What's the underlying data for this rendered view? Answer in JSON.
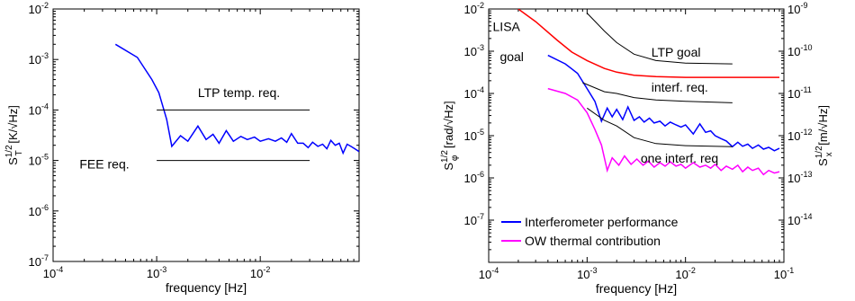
{
  "chart_data": [
    {
      "type": "line",
      "xscale": "log",
      "yscale": "log",
      "xlim": [
        0.0001,
        0.09
      ],
      "ylim": [
        1e-07,
        0.01
      ],
      "xticks": [
        {
          "value": 0.0001,
          "base": "10",
          "exp": "-4"
        },
        {
          "value": 0.001,
          "base": "10",
          "exp": "-3"
        },
        {
          "value": 0.01,
          "base": "10",
          "exp": "-2"
        }
      ],
      "yticks": [
        {
          "value": 1e-07,
          "base": "10",
          "exp": "-7"
        },
        {
          "value": 1e-06,
          "base": "10",
          "exp": "-6"
        },
        {
          "value": 1e-05,
          "base": "10",
          "exp": "-5"
        },
        {
          "value": 0.0001,
          "base": "10",
          "exp": "-4"
        },
        {
          "value": 0.001,
          "base": "10",
          "exp": "-3"
        },
        {
          "value": 0.01,
          "base": "10",
          "exp": "-2"
        }
      ],
      "xlabel": "frequency [Hz]",
      "ylabel": {
        "main": "S",
        "sub": "T",
        "sup": "1/2",
        "units": " [K/√Hz]"
      },
      "series": [
        {
          "color": "#0000ff",
          "points": [
            [
              0.0004,
              0.002
            ],
            [
              0.00065,
              0.0011
            ],
            [
              0.0009,
              0.0004
            ],
            [
              0.00105,
              0.00022
            ],
            [
              0.00125,
              6.5e-05
            ],
            [
              0.0014,
              1.9e-05
            ],
            [
              0.0017,
              3.1e-05
            ],
            [
              0.002,
              2.4e-05
            ],
            [
              0.0025,
              4.8e-05
            ],
            [
              0.003,
              2.6e-05
            ],
            [
              0.0035,
              3.3e-05
            ],
            [
              0.004,
              2.2e-05
            ],
            [
              0.0047,
              3.9e-05
            ],
            [
              0.0055,
              2.4e-05
            ],
            [
              0.0065,
              3e-05
            ],
            [
              0.0075,
              2.6e-05
            ],
            [
              0.0088,
              2.9e-05
            ],
            [
              0.01,
              2.4e-05
            ],
            [
              0.012,
              2.7e-05
            ],
            [
              0.014,
              2.4e-05
            ],
            [
              0.016,
              2.8e-05
            ],
            [
              0.018,
              2.3e-05
            ],
            [
              0.02,
              3.4e-05
            ],
            [
              0.023,
              2.2e-05
            ],
            [
              0.026,
              2.2e-05
            ],
            [
              0.029,
              1.8e-05
            ],
            [
              0.032,
              2.3e-05
            ],
            [
              0.036,
              1.9e-05
            ],
            [
              0.04,
              2.1e-05
            ],
            [
              0.044,
              1.7e-05
            ],
            [
              0.048,
              2.5e-05
            ],
            [
              0.053,
              2e-05
            ],
            [
              0.058,
              2.2e-05
            ],
            [
              0.063,
              1.4e-05
            ],
            [
              0.069,
              2.1e-05
            ],
            [
              0.075,
              1.9e-05
            ],
            [
              0.082,
              1.7e-05
            ],
            [
              0.09,
              1.5e-05
            ]
          ]
        },
        {
          "color": "#000000",
          "points": [
            [
              0.001,
              0.0001
            ],
            [
              0.03,
              0.0001
            ]
          ]
        },
        {
          "color": "#000000",
          "points": [
            [
              0.001,
              1e-05
            ],
            [
              0.03,
              1e-05
            ]
          ]
        }
      ],
      "annotations": [
        {
          "text": "LTP temp. req.",
          "x": 0.0025,
          "y": 0.00018
        },
        {
          "text": "FEE req.",
          "x": 0.00018,
          "y": 7e-06
        }
      ]
    },
    {
      "type": "line",
      "xscale": "log",
      "yscale": "log",
      "xlim": [
        0.0001,
        0.1
      ],
      "ylim": [
        1e-08,
        0.01
      ],
      "xticks": [
        {
          "value": 0.0001,
          "base": "10",
          "exp": "-4"
        },
        {
          "value": 0.001,
          "base": "10",
          "exp": "-3"
        },
        {
          "value": 0.01,
          "base": "10",
          "exp": "-2"
        },
        {
          "value": 0.1,
          "base": "10",
          "exp": "-1"
        }
      ],
      "yticks": [
        {
          "value": 1e-07,
          "base": "10",
          "exp": "-7"
        },
        {
          "value": 1e-06,
          "base": "10",
          "exp": "-6"
        },
        {
          "value": 1e-05,
          "base": "10",
          "exp": "-5"
        },
        {
          "value": 0.0001,
          "base": "10",
          "exp": "-4"
        },
        {
          "value": 0.001,
          "base": "10",
          "exp": "-3"
        },
        {
          "value": 0.01,
          "base": "10",
          "exp": "-2"
        }
      ],
      "yticks_right": [
        {
          "value": 1e-09,
          "base": "10",
          "exp": "-9"
        },
        {
          "value": 1e-10,
          "base": "10",
          "exp": "-10"
        },
        {
          "value": 1e-11,
          "base": "10",
          "exp": "-11"
        },
        {
          "value": 1e-12,
          "base": "10",
          "exp": "-12"
        },
        {
          "value": 1e-13,
          "base": "10",
          "exp": "-13"
        },
        {
          "value": 1e-14,
          "base": "10",
          "exp": "-14"
        }
      ],
      "ylim_right": [
        1e-15,
        1e-09
      ],
      "xlabel": "frequency [Hz]",
      "ylabel": {
        "main": "S",
        "sub": "φ",
        "sup": "1/2",
        "units": " [rad/√Hz]"
      },
      "ylabel_right": {
        "main": "S",
        "sub": "x",
        "sup": "1/2",
        "units": " [m/√Hz]"
      },
      "legend": {
        "placement": "bottom-left",
        "entries": [
          {
            "label": "Interferometer performance",
            "color": "#0000ff"
          },
          {
            "label": "OW thermal contribution",
            "color": "#ff00ff"
          }
        ]
      },
      "series": [
        {
          "name": "Interferometer performance",
          "color": "#0000ff",
          "points": [
            [
              0.0004,
              0.0008
            ],
            [
              0.0006,
              0.0005
            ],
            [
              0.0008,
              0.0003
            ],
            [
              0.001,
              0.00013
            ],
            [
              0.0012,
              6.5e-05
            ],
            [
              0.0014,
              2.2e-05
            ],
            [
              0.0016,
              4.5e-05
            ],
            [
              0.0018,
              2.8e-05
            ],
            [
              0.002,
              4.2e-05
            ],
            [
              0.0023,
              2.4e-05
            ],
            [
              0.0026,
              4.8e-05
            ],
            [
              0.003,
              2.3e-05
            ],
            [
              0.0034,
              2.8e-05
            ],
            [
              0.0038,
              2.1e-05
            ],
            [
              0.0043,
              2.6e-05
            ],
            [
              0.0048,
              2e-05
            ],
            [
              0.0055,
              2.2e-05
            ],
            [
              0.0062,
              1.7e-05
            ],
            [
              0.007,
              2.1e-05
            ],
            [
              0.008,
              1.8e-05
            ],
            [
              0.009,
              1.6e-05
            ],
            [
              0.01,
              1.8e-05
            ],
            [
              0.012,
              1.1e-05
            ],
            [
              0.014,
              1.9e-05
            ],
            [
              0.016,
              1.2e-05
            ],
            [
              0.018,
              1.3e-05
            ],
            [
              0.02,
              1e-05
            ],
            [
              0.023,
              8.5e-06
            ],
            [
              0.026,
              7.5e-06
            ],
            [
              0.03,
              5.5e-06
            ],
            [
              0.034,
              7e-06
            ],
            [
              0.038,
              5.6e-06
            ],
            [
              0.043,
              6.3e-06
            ],
            [
              0.048,
              5e-06
            ],
            [
              0.055,
              6e-06
            ],
            [
              0.062,
              4.8e-06
            ],
            [
              0.07,
              5.3e-06
            ],
            [
              0.08,
              4.4e-06
            ],
            [
              0.09,
              5e-06
            ]
          ]
        },
        {
          "name": "OW thermal contribution",
          "color": "#ff00ff",
          "points": [
            [
              0.0004,
              0.00013
            ],
            [
              0.0006,
              0.0001
            ],
            [
              0.0008,
              7e-05
            ],
            [
              0.001,
              3.5e-05
            ],
            [
              0.0012,
              1.4e-05
            ],
            [
              0.0014,
              6e-06
            ],
            [
              0.0016,
              1.5e-06
            ],
            [
              0.0018,
              3e-06
            ],
            [
              0.0021,
              2e-06
            ],
            [
              0.0024,
              3.3e-06
            ],
            [
              0.0028,
              2.1e-06
            ],
            [
              0.0032,
              2.8e-06
            ],
            [
              0.0037,
              2e-06
            ],
            [
              0.0042,
              2.5e-06
            ],
            [
              0.0048,
              1.8e-06
            ],
            [
              0.0055,
              2.3e-06
            ],
            [
              0.0062,
              1.9e-06
            ],
            [
              0.007,
              2.4e-06
            ],
            [
              0.008,
              1.9e-06
            ],
            [
              0.009,
              2.1e-06
            ],
            [
              0.01,
              1.7e-06
            ],
            [
              0.012,
              2.3e-06
            ],
            [
              0.014,
              1.8e-06
            ],
            [
              0.016,
              2e-06
            ],
            [
              0.018,
              1.7e-06
            ],
            [
              0.02,
              2.1e-06
            ],
            [
              0.023,
              1.5e-06
            ],
            [
              0.026,
              1.9e-06
            ],
            [
              0.03,
              1.6e-06
            ],
            [
              0.034,
              2e-06
            ],
            [
              0.038,
              1.4e-06
            ],
            [
              0.043,
              1.8e-06
            ],
            [
              0.048,
              1.5e-06
            ],
            [
              0.055,
              1.7e-06
            ],
            [
              0.062,
              1.2e-06
            ],
            [
              0.07,
              1.5e-06
            ],
            [
              0.08,
              1.3e-06
            ],
            [
              0.09,
              1.4e-06
            ]
          ]
        },
        {
          "color": "#ff0000",
          "points": [
            [
              0.0002,
              0.01
            ],
            [
              0.0003,
              0.005
            ],
            [
              0.0005,
              0.0018
            ],
            [
              0.0007,
              0.00095
            ],
            [
              0.001,
              0.0006
            ],
            [
              0.0015,
              0.00039
            ],
            [
              0.002,
              0.00032
            ],
            [
              0.003,
              0.00027
            ],
            [
              0.005,
              0.00025
            ],
            [
              0.01,
              0.00024
            ],
            [
              0.03,
              0.00024
            ],
            [
              0.09,
              0.00024
            ]
          ]
        },
        {
          "color": "#000000",
          "points": [
            [
              0.001,
              0.008
            ],
            [
              0.0015,
              0.003
            ],
            [
              0.002,
              0.0016
            ],
            [
              0.003,
              0.00085
            ],
            [
              0.005,
              0.0006
            ],
            [
              0.01,
              0.00052
            ],
            [
              0.03,
              0.0005
            ]
          ]
        },
        {
          "color": "#000000",
          "points": [
            [
              0.0009,
              0.00018
            ],
            [
              0.0015,
              0.00011
            ],
            [
              0.002,
              0.0001
            ],
            [
              0.003,
              8e-05
            ],
            [
              0.005,
              7e-05
            ],
            [
              0.01,
              6.5e-05
            ],
            [
              0.03,
              6e-05
            ]
          ]
        },
        {
          "color": "#000000",
          "points": [
            [
              0.001,
              4.5e-05
            ],
            [
              0.0015,
              2.3e-05
            ],
            [
              0.002,
              1.7e-05
            ],
            [
              0.003,
              9e-06
            ],
            [
              0.005,
              6.5e-06
            ],
            [
              0.01,
              5.8e-06
            ],
            [
              0.03,
              5.5e-06
            ]
          ]
        }
      ],
      "annotations": [
        {
          "text": "LTP goal",
          "x": 0.0045,
          "y": 0.00075,
          "color": "#000000"
        },
        {
          "text": "interf. req.",
          "x": 0.0045,
          "y": 0.00011,
          "color": "#000000"
        },
        {
          "text": "one interf. req",
          "x": 0.0035,
          "y": 2.3e-06,
          "color": "#000000"
        },
        {
          "text": "LISA",
          "x": 0.00011,
          "y": 0.003,
          "color": "#ff0000"
        },
        {
          "text": "goal",
          "x": 0.00013,
          "y": 0.00058,
          "color": "#ff0000"
        }
      ]
    }
  ]
}
